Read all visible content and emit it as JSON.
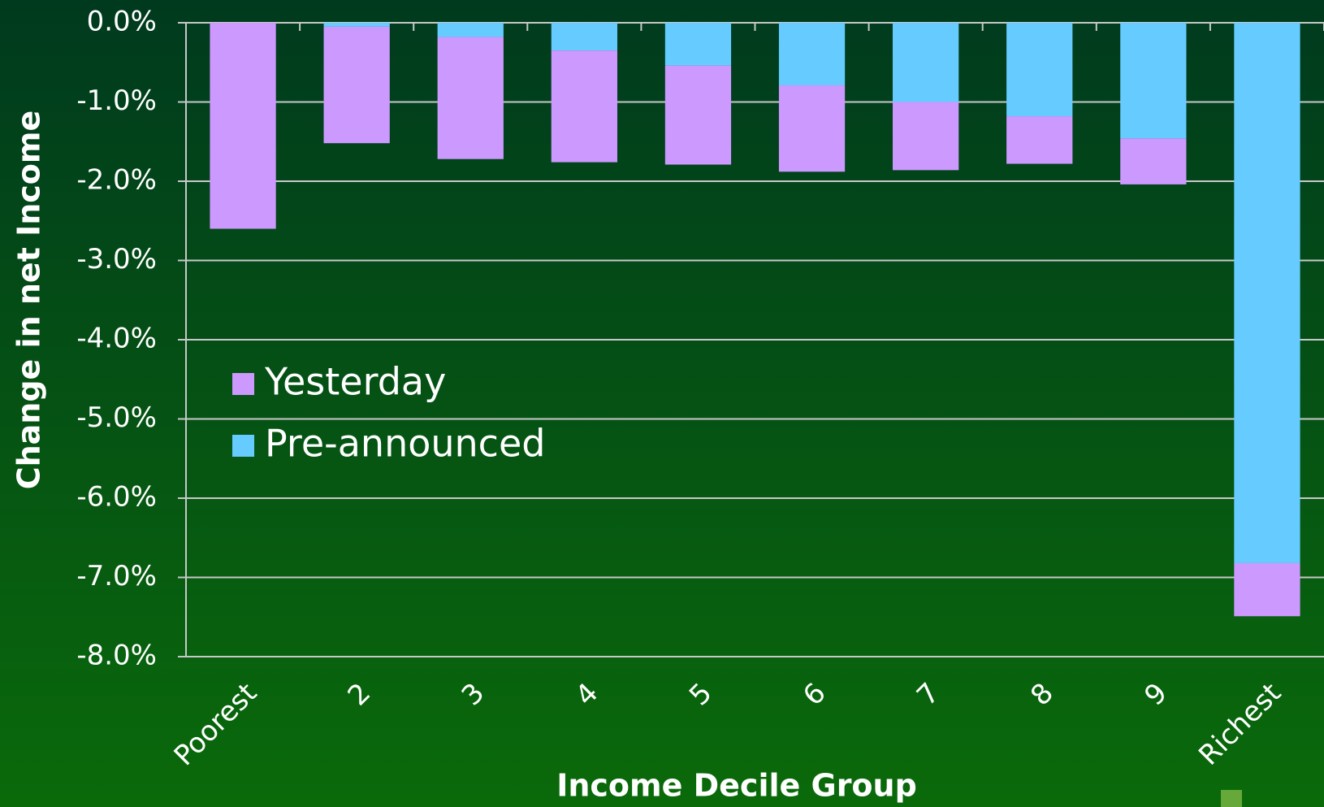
{
  "chart_data": {
    "type": "stacked_bar",
    "x_label": "Income Decile Group",
    "y_label": "Change in net Income",
    "categories": [
      "Poorest",
      "2",
      "3",
      "4",
      "5",
      "6",
      "7",
      "8",
      "9",
      "Richest"
    ],
    "series": [
      {
        "name": "Pre-announced",
        "color": "#66ccff",
        "values": [
          0,
          -0.05,
          -0.18,
          -0.35,
          -0.54,
          -0.79,
          -1.0,
          -1.18,
          -1.46,
          -6.82
        ]
      },
      {
        "name": "Yesterday",
        "color": "#cc99ff",
        "values": [
          -2.6,
          -1.47,
          -1.54,
          -1.41,
          -1.25,
          -1.09,
          -0.86,
          -0.6,
          -0.58,
          -0.67
        ]
      }
    ],
    "ylim": [
      -8,
      0
    ],
    "yticks": [
      {
        "value": 0,
        "label": "0.0%"
      },
      {
        "value": -1,
        "label": "-1.0%"
      },
      {
        "value": -2,
        "label": "-2.0%"
      },
      {
        "value": -3,
        "label": "-3.0%"
      },
      {
        "value": -4,
        "label": "-4.0%"
      },
      {
        "value": -5,
        "label": "-5.0%"
      },
      {
        "value": -6,
        "label": "-6.0%"
      },
      {
        "value": -7,
        "label": "-7.0%"
      },
      {
        "value": -8,
        "label": "-8.0%"
      }
    ],
    "grid": true
  }
}
